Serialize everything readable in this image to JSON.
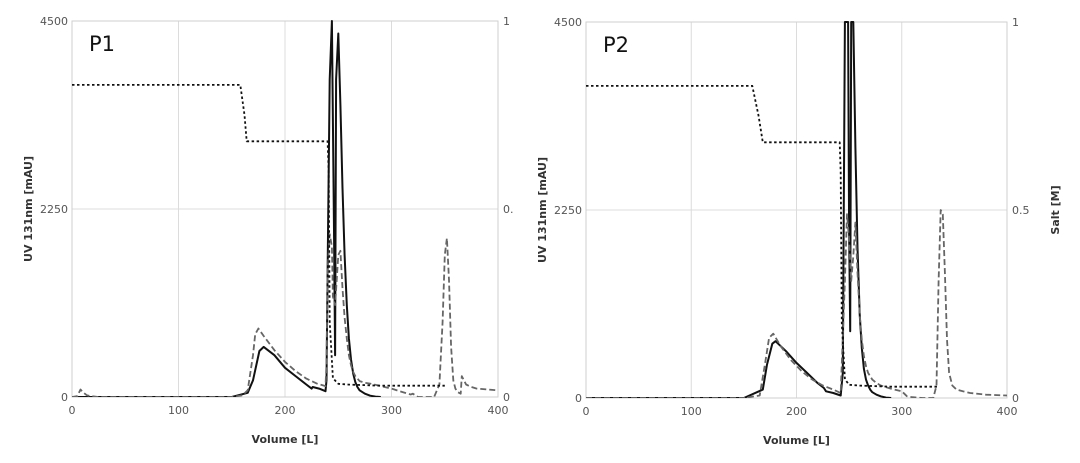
{
  "chart_data": [
    {
      "type": "line",
      "panel_label": "P1",
      "xlabel": "Volume [L]",
      "ylabel": "UV 131nm [mAU]",
      "y2label": "",
      "xlim": [
        0,
        400
      ],
      "ylim": [
        0,
        4500
      ],
      "y2lim": [
        0,
        1
      ],
      "x_ticks": [
        "0",
        "100",
        "200",
        "300",
        "400"
      ],
      "y_ticks": [
        "0",
        "2250",
        "4500"
      ],
      "y2_ticks": [
        "0",
        "0.",
        "1"
      ],
      "grid": true,
      "series": [
        {
          "style": "solid",
          "color": "#111111",
          "axis": "left",
          "x": [
            0,
            150,
            165,
            170,
            176,
            180,
            190,
            200,
            210,
            220,
            225,
            226,
            232,
            238,
            239,
            240,
            242,
            244,
            246,
            247,
            248,
            250,
            252,
            254,
            256,
            258,
            260,
            262,
            264,
            266,
            268,
            270,
            275,
            280,
            285,
            290
          ],
          "y": [
            0,
            0,
            50,
            200,
            550,
            600,
            500,
            350,
            250,
            150,
            100,
            120,
            100,
            70,
            200,
            1500,
            3800,
            4500,
            2000,
            500,
            3800,
            4350,
            3500,
            2500,
            1700,
            1100,
            700,
            450,
            280,
            180,
            120,
            80,
            40,
            15,
            5,
            0
          ]
        },
        {
          "style": "dashed",
          "color": "#666666",
          "axis": "left",
          "x": [
            0,
            5,
            8,
            10,
            14,
            18,
            25,
            40,
            150,
            160,
            165,
            170,
            172,
            175,
            180,
            190,
            200,
            210,
            220,
            230,
            238,
            239,
            240,
            242,
            244,
            245,
            247,
            250,
            252,
            254,
            256,
            258,
            260,
            262,
            264,
            266,
            270,
            275,
            280,
            290,
            300,
            310,
            318,
            320,
            325,
            330,
            340,
            345,
            348,
            350,
            352,
            354,
            356,
            358,
            360,
            362,
            365,
            366,
            368,
            370,
            375,
            380,
            390,
            400
          ],
          "y": [
            0,
            10,
            90,
            60,
            20,
            10,
            0,
            0,
            0,
            20,
            80,
            500,
            750,
            820,
            730,
            560,
            420,
            310,
            220,
            160,
            130,
            400,
            1500,
            1950,
            1800,
            1200,
            1100,
            1700,
            1750,
            1300,
            950,
            700,
            500,
            380,
            300,
            250,
            190,
            170,
            160,
            130,
            100,
            60,
            30,
            40,
            0,
            0,
            0,
            150,
            900,
            1700,
            1900,
            1400,
            600,
            200,
            100,
            60,
            40,
            250,
            200,
            150,
            120,
            100,
            90,
            80
          ]
        },
        {
          "style": "dotted",
          "color": "#111111",
          "axis": "right",
          "x": [
            0,
            158,
            162,
            164,
            240,
            241,
            242,
            245,
            250,
            260,
            290,
            320,
            340,
            350
          ],
          "y": [
            0.83,
            0.83,
            0.75,
            0.68,
            0.68,
            0.6,
            0.2,
            0.05,
            0.035,
            0.033,
            0.03,
            0.03,
            0.03,
            0.03
          ]
        }
      ]
    },
    {
      "type": "line",
      "panel_label": "P2",
      "xlabel": "Volume [L]",
      "ylabel": "UV 131nm [mAU]",
      "y2label": "Salt [M]",
      "xlim": [
        0,
        400
      ],
      "ylim": [
        0,
        4500
      ],
      "y2lim": [
        0,
        1
      ],
      "x_ticks": [
        "0",
        "100",
        "200",
        "300",
        "400"
      ],
      "y_ticks": [
        "0",
        "2250",
        "4500"
      ],
      "y2_ticks": [
        "0",
        "0.5",
        "1"
      ],
      "grid": true,
      "series": [
        {
          "style": "solid",
          "color": "#111111",
          "axis": "left",
          "x": [
            0,
            150,
            168,
            172,
            177,
            180,
            190,
            200,
            210,
            220,
            226,
            228,
            235,
            242,
            244,
            246,
            247,
            249,
            250,
            251,
            252,
            254,
            256,
            258,
            260,
            262,
            264,
            266,
            268,
            270,
            272,
            276,
            280,
            285,
            290
          ],
          "y": [
            0,
            0,
            100,
            400,
            650,
            680,
            560,
            420,
            300,
            180,
            120,
            80,
            60,
            30,
            300,
            4500,
            4500,
            4500,
            2000,
            800,
            4500,
            4500,
            3000,
            1800,
            1000,
            600,
            350,
            220,
            150,
            100,
            70,
            40,
            20,
            5,
            0
          ]
        },
        {
          "style": "dashed",
          "color": "#666666",
          "axis": "left",
          "x": [
            0,
            150,
            165,
            170,
            174,
            178,
            185,
            195,
            205,
            215,
            225,
            235,
            242,
            246,
            248,
            250,
            252,
            254,
            256,
            258,
            260,
            262,
            264,
            266,
            268,
            272,
            276,
            280,
            290,
            300,
            305,
            310,
            320,
            330,
            333,
            335,
            337,
            339,
            341,
            343,
            345,
            348,
            352,
            358,
            365,
            380,
            400
          ],
          "y": [
            0,
            0,
            30,
            400,
            720,
            770,
            620,
            450,
            320,
            220,
            150,
            100,
            60,
            1400,
            2200,
            1900,
            1400,
            1700,
            2100,
            1500,
            1000,
            700,
            500,
            380,
            300,
            220,
            180,
            150,
            110,
            80,
            20,
            10,
            0,
            0,
            150,
            1400,
            2250,
            2200,
            1500,
            700,
            300,
            150,
            100,
            80,
            60,
            40,
            30
          ]
        },
        {
          "style": "dotted",
          "color": "#111111",
          "axis": "right",
          "x": [
            0,
            158,
            164,
            168,
            241,
            242,
            243,
            246,
            250,
            260,
            290,
            300,
            320,
            335
          ],
          "y": [
            0.83,
            0.83,
            0.75,
            0.68,
            0.68,
            0.6,
            0.2,
            0.05,
            0.035,
            0.033,
            0.03,
            0.03,
            0.03,
            0.03
          ]
        }
      ]
    }
  ]
}
